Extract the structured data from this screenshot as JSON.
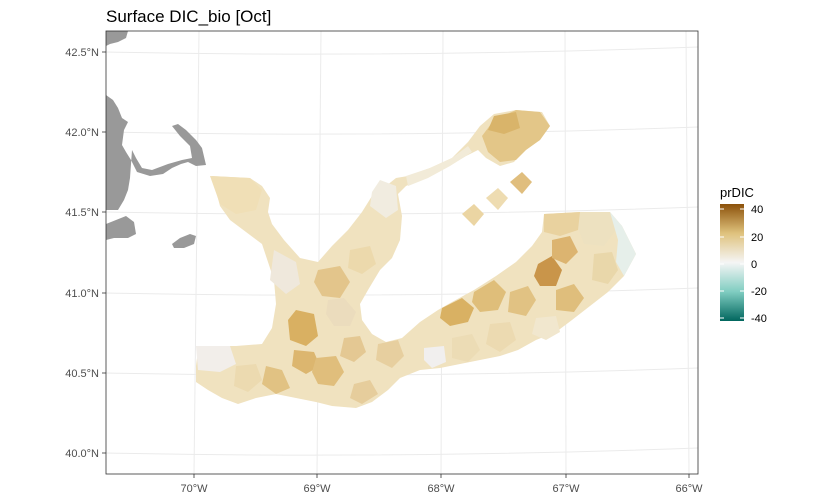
{
  "chart_data": {
    "type": "map",
    "title": "Surface DIC_bio [Oct]",
    "x_ticks": [
      "70°W",
      "69°W",
      "68°W",
      "67°W",
      "66°W"
    ],
    "y_ticks": [
      "42.5°N",
      "42.0°N",
      "41.5°N",
      "41.0°N",
      "40.5°N",
      "40.0°N"
    ],
    "xlim": [
      -70.7,
      -65.9
    ],
    "ylim": [
      39.95,
      42.6
    ],
    "grid": true,
    "legend": {
      "title": "prDIC",
      "ticks": [
        "40",
        "20",
        "0",
        "-20",
        "-40"
      ],
      "range": [
        -45,
        45
      ],
      "colors": [
        "#01665e",
        "#80cdc1",
        "#f5f5f5",
        "#dfc27d",
        "#8c510a"
      ],
      "placement": "right"
    },
    "land_color": "#999999"
  }
}
